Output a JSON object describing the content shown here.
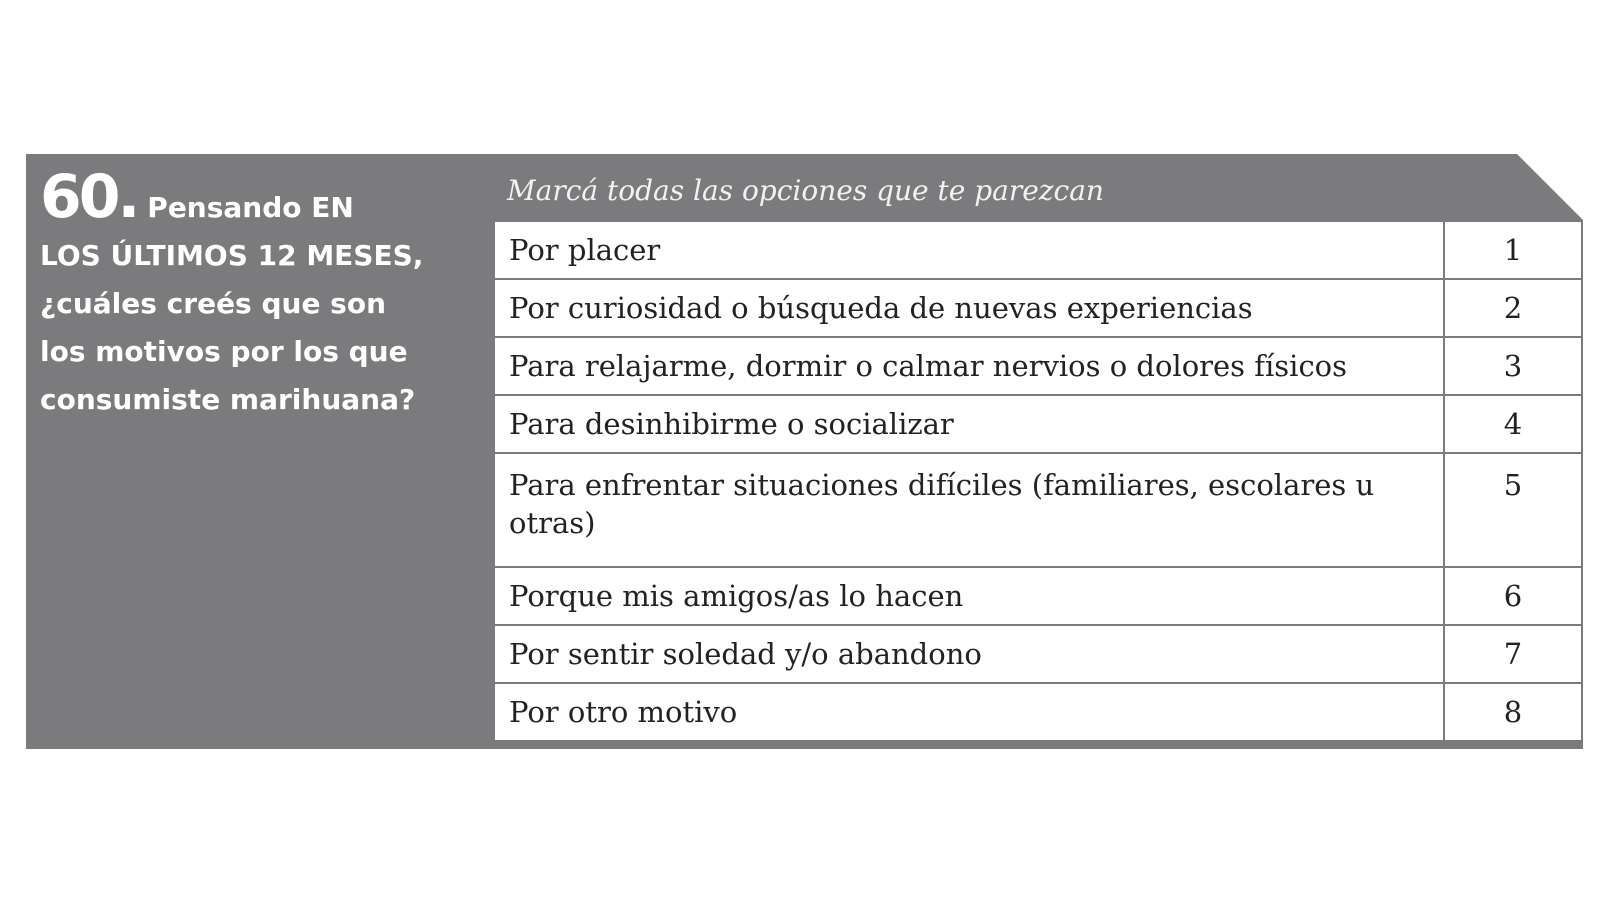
{
  "question": {
    "number": "60.",
    "intro": "Pensando EN",
    "line1": "LOS ÚLTIMOS 12 MESES,",
    "line2": "¿cuáles creés que son",
    "line3": "los motivos por los que",
    "line4": "consumiste marihuana?"
  },
  "instruction": "Marcá todas las opciones que te parezcan",
  "options": [
    {
      "label": "Por placer",
      "code": "1"
    },
    {
      "label": "Por curiosidad o búsqueda de nuevas experiencias",
      "code": "2"
    },
    {
      "label": "Para relajarme, dormir o calmar nervios o dolores físicos",
      "code": "3"
    },
    {
      "label": "Para desinhibirme o socializar",
      "code": "4"
    },
    {
      "label": "Para enfrentar situaciones difíciles (familiares, escolares u otras)",
      "code": "5"
    },
    {
      "label": "Porque mis amigos/as lo hacen",
      "code": "6"
    },
    {
      "label": "Por sentir soledad y/o abandono",
      "code": "7"
    },
    {
      "label": "Por otro motivo",
      "code": "8"
    }
  ],
  "colors": {
    "panel": "#7b7b7d",
    "text_on_panel": "#ffffff",
    "cell_text": "#222222"
  }
}
